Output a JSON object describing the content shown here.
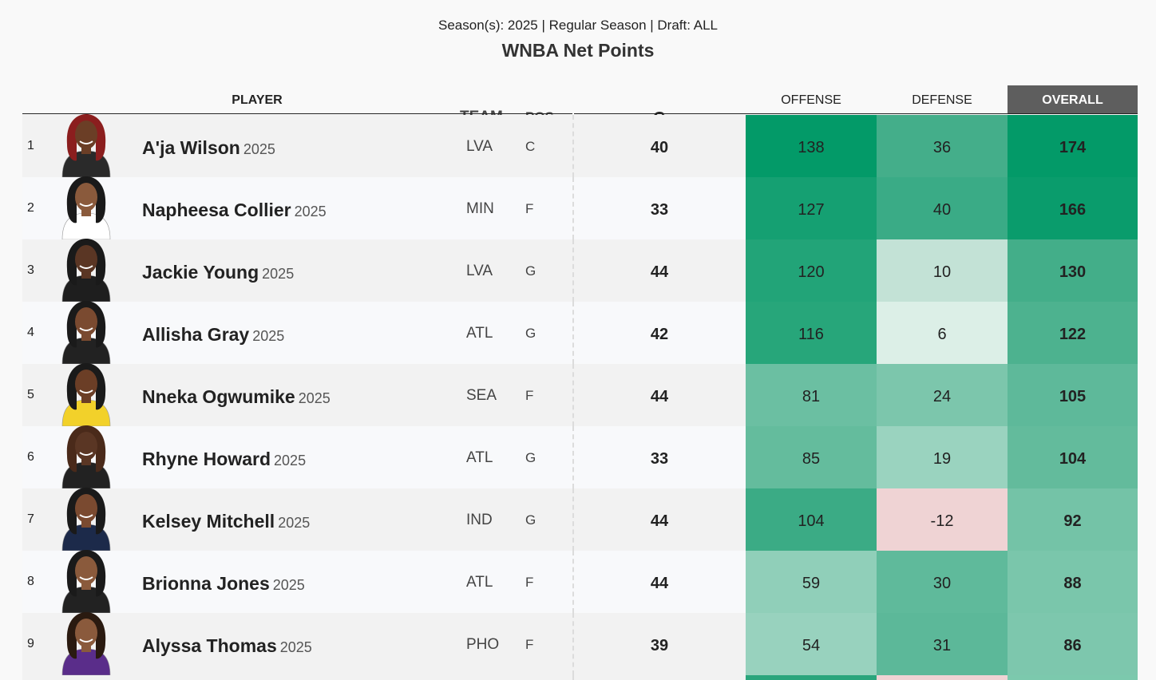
{
  "header": {
    "subtitle": "Season(s): 2025 | Regular Season | Draft: ALL",
    "title": "WNBA Net Points"
  },
  "columns": {
    "player": "PLAYER",
    "team": "TEAM",
    "pos": "POS.",
    "g": "G",
    "offense": "OFFENSE",
    "defense": "DEFENSE",
    "overall": "OVERALL"
  },
  "rows": [
    {
      "rank": "1",
      "name": "A'ja Wilson",
      "year": "2025",
      "team": "LVA",
      "pos": "C",
      "g": "40",
      "offense": "138",
      "defense": "36",
      "overall": "174",
      "offense_color": "#039a68",
      "defense_color": "#44ae8a",
      "overall_color": "#039a68",
      "hair": "#8b1e1e",
      "skin": "#6b3e26",
      "jersey": "#2a2a2a"
    },
    {
      "rank": "2",
      "name": "Napheesa Collier",
      "year": "2025",
      "team": "MIN",
      "pos": "F",
      "g": "33",
      "offense": "127",
      "defense": "40",
      "overall": "166",
      "offense_color": "#15a072",
      "defense_color": "#3aab86",
      "overall_color": "#0a9c6c",
      "hair": "#1a1a1a",
      "skin": "#8a5a3c",
      "jersey": "#ffffff"
    },
    {
      "rank": "3",
      "name": "Jackie Young",
      "year": "2025",
      "team": "LVA",
      "pos": "G",
      "g": "44",
      "offense": "120",
      "defense": "10",
      "overall": "130",
      "offense_color": "#22a478",
      "defense_color": "#c3e2d6",
      "overall_color": "#43ae89",
      "hair": "#1a1a1a",
      "skin": "#5a3624",
      "jersey": "#1e1e1e"
    },
    {
      "rank": "4",
      "name": "Allisha Gray",
      "year": "2025",
      "team": "ATL",
      "pos": "G",
      "g": "42",
      "offense": "116",
      "defense": "6",
      "overall": "122",
      "offense_color": "#27a67a",
      "defense_color": "#dcefe7",
      "overall_color": "#4db28f",
      "hair": "#1a1a1a",
      "skin": "#7a4a30",
      "jersey": "#222222"
    },
    {
      "rank": "5",
      "name": "Nneka Ogwumike",
      "year": "2025",
      "team": "SEA",
      "pos": "F",
      "g": "44",
      "offense": "81",
      "defense": "24",
      "overall": "105",
      "offense_color": "#6bbfa2",
      "defense_color": "#7cc6ac",
      "overall_color": "#5eb99a",
      "hair": "#1a1a1a",
      "skin": "#6b3e26",
      "jersey": "#f2d12a"
    },
    {
      "rank": "6",
      "name": "Rhyne Howard",
      "year": "2025",
      "team": "ATL",
      "pos": "G",
      "g": "33",
      "offense": "85",
      "defense": "19",
      "overall": "104",
      "offense_color": "#64bc9d",
      "defense_color": "#9ad3bf",
      "overall_color": "#63bb9c",
      "hair": "#4a2a1a",
      "skin": "#5a3624",
      "jersey": "#222222"
    },
    {
      "rank": "7",
      "name": "Kelsey Mitchell",
      "year": "2025",
      "team": "IND",
      "pos": "G",
      "g": "44",
      "offense": "104",
      "defense": "-12",
      "overall": "92",
      "offense_color": "#3bab85",
      "defense_color": "#efd3d4",
      "overall_color": "#74c3a7",
      "hair": "#1a1a1a",
      "skin": "#7a4a30",
      "jersey": "#1c2a4a"
    },
    {
      "rank": "8",
      "name": "Brionna Jones",
      "year": "2025",
      "team": "ATL",
      "pos": "F",
      "g": "44",
      "offense": "59",
      "defense": "30",
      "overall": "88",
      "offense_color": "#90cfb9",
      "defense_color": "#5fba9b",
      "overall_color": "#7ac6ab",
      "hair": "#1a1a1a",
      "skin": "#8a5a3c",
      "jersey": "#222222"
    },
    {
      "rank": "9",
      "name": "Alyssa Thomas",
      "year": "2025",
      "team": "PHO",
      "pos": "F",
      "g": "39",
      "offense": "54",
      "defense": "31",
      "overall": "86",
      "offense_color": "#98d2be",
      "defense_color": "#5cb899",
      "overall_color": "#7dc7ad",
      "hair": "#2a1a10",
      "skin": "#8a5a3c",
      "jersey": "#5a2d8a"
    }
  ]
}
